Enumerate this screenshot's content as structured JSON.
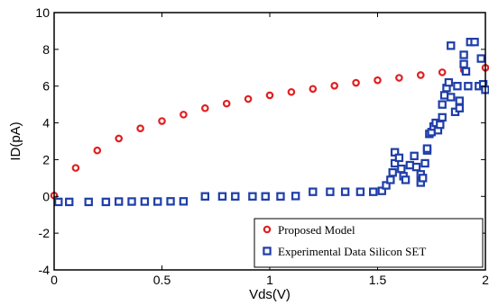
{
  "chart_data": {
    "type": "scatter",
    "xlabel": "Vds(V)",
    "ylabel": "ID(pA)",
    "xlim": [
      0,
      2
    ],
    "ylim": [
      -4,
      10
    ],
    "xticks": [
      "0",
      "0.5",
      "1",
      "1.5",
      "2"
    ],
    "yticks": [
      "-4",
      "-2",
      "0",
      "2",
      "4",
      "6",
      "8",
      "10"
    ],
    "grid": false,
    "legend_position": "bottom-right",
    "series": [
      {
        "name": "Proposed Model",
        "marker": "circle",
        "color": "#e02020",
        "points": [
          [
            0.0,
            0.05
          ],
          [
            0.1,
            1.55
          ],
          [
            0.2,
            2.5
          ],
          [
            0.3,
            3.15
          ],
          [
            0.4,
            3.7
          ],
          [
            0.5,
            4.1
          ],
          [
            0.6,
            4.45
          ],
          [
            0.7,
            4.8
          ],
          [
            0.8,
            5.05
          ],
          [
            0.9,
            5.3
          ],
          [
            1.0,
            5.5
          ],
          [
            1.1,
            5.68
          ],
          [
            1.2,
            5.85
          ],
          [
            1.3,
            6.02
          ],
          [
            1.4,
            6.18
          ],
          [
            1.5,
            6.32
          ],
          [
            1.6,
            6.45
          ],
          [
            1.7,
            6.6
          ],
          [
            1.8,
            6.75
          ],
          [
            1.9,
            6.88
          ],
          [
            2.0,
            7.0
          ]
        ]
      },
      {
        "name": "Experimental Data Silicon SET",
        "marker": "square",
        "color": "#1f3ea8",
        "points": [
          [
            0.02,
            -0.3
          ],
          [
            0.07,
            -0.3
          ],
          [
            0.16,
            -0.3
          ],
          [
            0.24,
            -0.3
          ],
          [
            0.3,
            -0.28
          ],
          [
            0.36,
            -0.28
          ],
          [
            0.42,
            -0.28
          ],
          [
            0.48,
            -0.28
          ],
          [
            0.54,
            -0.27
          ],
          [
            0.6,
            -0.27
          ],
          [
            0.7,
            0.0
          ],
          [
            0.78,
            0.0
          ],
          [
            0.84,
            0.0
          ],
          [
            0.92,
            0.0
          ],
          [
            0.98,
            0.0
          ],
          [
            1.05,
            0.0
          ],
          [
            1.12,
            0.02
          ],
          [
            1.2,
            0.25
          ],
          [
            1.28,
            0.25
          ],
          [
            1.35,
            0.25
          ],
          [
            1.42,
            0.25
          ],
          [
            1.48,
            0.25
          ],
          [
            1.52,
            0.3
          ],
          [
            1.54,
            0.6
          ],
          [
            1.56,
            0.9
          ],
          [
            1.57,
            1.3
          ],
          [
            1.58,
            1.8
          ],
          [
            1.58,
            2.4
          ],
          [
            1.6,
            2.1
          ],
          [
            1.61,
            1.5
          ],
          [
            1.62,
            1.1
          ],
          [
            1.63,
            0.9
          ],
          [
            1.65,
            1.7
          ],
          [
            1.67,
            2.2
          ],
          [
            1.68,
            1.6
          ],
          [
            1.7,
            1.2
          ],
          [
            1.7,
            0.75
          ],
          [
            1.71,
            1.0
          ],
          [
            1.72,
            1.8
          ],
          [
            1.73,
            2.5
          ],
          [
            1.73,
            2.6
          ],
          [
            1.74,
            3.4
          ],
          [
            1.75,
            3.5
          ],
          [
            1.76,
            3.8
          ],
          [
            1.77,
            4.0
          ],
          [
            1.78,
            3.6
          ],
          [
            1.79,
            3.9
          ],
          [
            1.8,
            4.3
          ],
          [
            1.8,
            5.0
          ],
          [
            1.81,
            5.5
          ],
          [
            1.82,
            5.9
          ],
          [
            1.83,
            6.2
          ],
          [
            1.84,
            5.4
          ],
          [
            1.84,
            8.2
          ],
          [
            1.86,
            4.6
          ],
          [
            1.87,
            6.0
          ],
          [
            1.88,
            5.2
          ],
          [
            1.88,
            4.8
          ],
          [
            1.9,
            7.7
          ],
          [
            1.9,
            7.2
          ],
          [
            1.91,
            6.8
          ],
          [
            1.92,
            6.0
          ],
          [
            1.93,
            8.4
          ],
          [
            1.95,
            8.4
          ],
          [
            1.97,
            6.0
          ],
          [
            1.98,
            7.5
          ],
          [
            1.99,
            6.1
          ],
          [
            2.0,
            5.8
          ]
        ]
      }
    ]
  }
}
